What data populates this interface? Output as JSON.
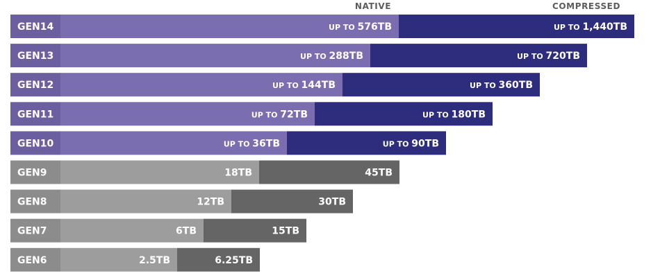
{
  "chart_data": {
    "type": "bar",
    "stacked": true,
    "orientation": "horizontal",
    "legend": [
      "NATIVE",
      "COMPRESSED"
    ],
    "categories": [
      "GEN14",
      "GEN13",
      "GEN12",
      "GEN11",
      "GEN10",
      "GEN9",
      "GEN8",
      "GEN7",
      "GEN6"
    ],
    "series": [
      {
        "name": "NATIVE",
        "values": [
          576,
          288,
          144,
          72,
          36,
          18,
          12,
          6,
          2.5
        ]
      },
      {
        "name": "COMPRESSED",
        "values": [
          1440,
          720,
          360,
          180,
          90,
          45,
          30,
          15,
          6.25
        ]
      }
    ],
    "native_labels": [
      "576TB",
      "288TB",
      "144TB",
      "72TB",
      "36TB",
      "18TB",
      "12TB",
      "6TB",
      "2.5TB"
    ],
    "compressed_labels": [
      "1,440TB",
      "720TB",
      "360TB",
      "180TB",
      "90TB",
      "45TB",
      "30TB",
      "15TB",
      "6.25TB"
    ],
    "label_prefix": "UP TO",
    "prefixed_rows": [
      "GEN14",
      "GEN13",
      "GEN12",
      "GEN11",
      "GEN10"
    ],
    "colors": {
      "label_block_purple": "#6c5fa0",
      "native_purple": "#7a6db0",
      "compressed_purple": "#2e2c7c",
      "label_block_gray": "#8c8c8c",
      "native_gray": "#9d9d9d",
      "compressed_gray": "#656565",
      "legend_text": "#5c5c5c"
    }
  }
}
